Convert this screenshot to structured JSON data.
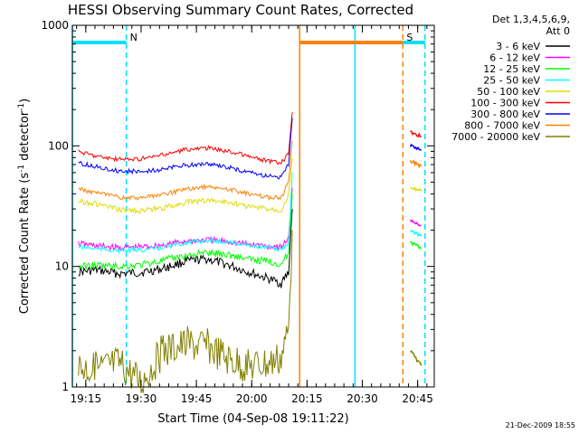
{
  "chart_data": {
    "type": "line",
    "title": "HESSI Observing Summary Count Rates, Corrected",
    "ylabel_main": "Corrected Count Rate (s",
    "ylabel_sup1": "-1",
    "ylabel_mid": " detector",
    "ylabel_sup2": "-1",
    "ylabel_end": ")",
    "xlabel": "Start Time (04-Sep-08 19:11:22)",
    "yscale": "log",
    "ylim": [
      1,
      1000
    ],
    "y_ticks": [
      1,
      10,
      100,
      1000
    ],
    "y_tick_labels": [
      "1",
      "10",
      "100",
      "1000"
    ],
    "x_range_minutes": [
      "19:11:22",
      "20:49:30"
    ],
    "x_ticks": [
      "19:15",
      "19:30",
      "19:45",
      "20:00",
      "20:15",
      "20:30",
      "20:45"
    ],
    "legend": {
      "header_line1": "Det 1,3,4,5,6,9,",
      "header_line2": "Att 0",
      "entries": [
        {
          "label": "3 - 6 keV",
          "color": "#000000"
        },
        {
          "label": "6 - 12 keV",
          "color": "#ff00ff"
        },
        {
          "label": "12 - 25 keV",
          "color": "#00ff00"
        },
        {
          "label": "25 - 50 keV",
          "color": "#00ffff"
        },
        {
          "label": "50 - 100 keV",
          "color": "#dddd00"
        },
        {
          "label": "100 - 300 keV",
          "color": "#ff0000"
        },
        {
          "label": "300 - 800 keV",
          "color": "#0000ff"
        },
        {
          "label": "800 - 7000 keV",
          "color": "#ff8000"
        },
        {
          "label": "7000 - 20000 keV",
          "color": "#808000"
        }
      ]
    },
    "series": [
      {
        "name": "3 - 6 keV",
        "color": "#000000",
        "points": [
          [
            "19:13",
            9.0
          ],
          [
            "19:18",
            9.3
          ],
          [
            "19:24",
            8.7
          ],
          [
            "19:30",
            8.9
          ],
          [
            "19:36",
            9.6
          ],
          [
            "19:42",
            11.0
          ],
          [
            "19:48",
            11.5
          ],
          [
            "19:54",
            10.2
          ],
          [
            "19:59",
            9.0
          ],
          [
            "20:05",
            7.8
          ],
          [
            "20:08",
            7.2
          ],
          [
            "20:10",
            9
          ],
          [
            "20:11",
            30
          ]
        ]
      },
      {
        "name": "6 - 12 keV",
        "color": "#ff00ff",
        "points": [
          [
            "19:13",
            15.5
          ],
          [
            "19:18",
            14.8
          ],
          [
            "19:24",
            14.3
          ],
          [
            "19:30",
            14.5
          ],
          [
            "19:36",
            15.0
          ],
          [
            "19:42",
            16.2
          ],
          [
            "19:48",
            16.6
          ],
          [
            "19:54",
            16.0
          ],
          [
            "19:59",
            15.2
          ],
          [
            "20:05",
            14.7
          ],
          [
            "20:08",
            14.5
          ],
          [
            "20:10",
            17
          ],
          [
            "20:11",
            45
          ]
        ]
      },
      {
        "name": "12 - 25 keV",
        "color": "#00ff00",
        "points": [
          [
            "19:13",
            10.0
          ],
          [
            "19:18",
            10.2
          ],
          [
            "19:24",
            10.0
          ],
          [
            "19:30",
            10.3
          ],
          [
            "19:36",
            11.2
          ],
          [
            "19:42",
            12.3
          ],
          [
            "19:48",
            13.0
          ],
          [
            "19:54",
            12.5
          ],
          [
            "19:59",
            11.5
          ],
          [
            "20:05",
            11.0
          ],
          [
            "20:08",
            10.5
          ],
          [
            "20:10",
            13
          ],
          [
            "20:11",
            40
          ]
        ]
      },
      {
        "name": "25 - 50 keV",
        "color": "#00ffff",
        "points": [
          [
            "19:13",
            14.5
          ],
          [
            "19:18",
            14.0
          ],
          [
            "19:24",
            13.5
          ],
          [
            "19:30",
            13.7
          ],
          [
            "19:36",
            14.3
          ],
          [
            "19:42",
            15.7
          ],
          [
            "19:48",
            16.4
          ],
          [
            "19:54",
            16.0
          ],
          [
            "19:59",
            15.0
          ],
          [
            "20:05",
            14.2
          ],
          [
            "20:08",
            13.8
          ],
          [
            "20:10",
            16
          ],
          [
            "20:11",
            60
          ]
        ]
      },
      {
        "name": "50 - 100 keV",
        "color": "#dddd00",
        "points": [
          [
            "19:13",
            35.0
          ],
          [
            "19:18",
            33.0
          ],
          [
            "19:24",
            29.5
          ],
          [
            "19:30",
            29.0
          ],
          [
            "19:36",
            30.5
          ],
          [
            "19:42",
            34.0
          ],
          [
            "19:48",
            35.5
          ],
          [
            "19:54",
            34.0
          ],
          [
            "19:59",
            31.5
          ],
          [
            "20:05",
            30.0
          ],
          [
            "20:08",
            29.5
          ],
          [
            "20:10",
            40
          ],
          [
            "20:11",
            80
          ]
        ]
      },
      {
        "name": "100 - 300 keV",
        "color": "#ff0000",
        "points": [
          [
            "19:13",
            90.0
          ],
          [
            "19:18",
            82.0
          ],
          [
            "19:24",
            77.0
          ],
          [
            "19:30",
            78.0
          ],
          [
            "19:36",
            84.0
          ],
          [
            "19:42",
            93.0
          ],
          [
            "19:48",
            96.0
          ],
          [
            "19:54",
            90.0
          ],
          [
            "19:59",
            82.0
          ],
          [
            "20:05",
            74.0
          ],
          [
            "20:08",
            72.0
          ],
          [
            "20:10",
            85
          ],
          [
            "20:11",
            190
          ]
        ]
      },
      {
        "name": "300 - 800 keV",
        "color": "#0000ff",
        "points": [
          [
            "19:13",
            72.0
          ],
          [
            "19:18",
            67.0
          ],
          [
            "19:24",
            62.0
          ],
          [
            "19:30",
            61.0
          ],
          [
            "19:36",
            64.0
          ],
          [
            "19:42",
            69.0
          ],
          [
            "19:48",
            71.0
          ],
          [
            "19:54",
            66.0
          ],
          [
            "19:59",
            60.0
          ],
          [
            "20:05",
            56.0
          ],
          [
            "20:08",
            55.0
          ],
          [
            "20:10",
            70
          ],
          [
            "20:11",
            170
          ]
        ]
      },
      {
        "name": "800 - 7000 keV",
        "color": "#ff8000",
        "points": [
          [
            "19:13",
            44.0
          ],
          [
            "19:18",
            40.5
          ],
          [
            "19:24",
            37.5
          ],
          [
            "19:30",
            37.0
          ],
          [
            "19:36",
            39.5
          ],
          [
            "19:42",
            43.5
          ],
          [
            "19:48",
            46.0
          ],
          [
            "19:54",
            43.5
          ],
          [
            "19:59",
            40.0
          ],
          [
            "20:05",
            37.5
          ],
          [
            "20:08",
            37.0
          ],
          [
            "20:10",
            50
          ],
          [
            "20:11",
            110
          ]
        ]
      },
      {
        "name": "7000 - 20000 keV",
        "color": "#808000",
        "points": [
          [
            "19:13",
            1.5
          ],
          [
            "19:18",
            1.4
          ],
          [
            "19:24",
            1.6
          ],
          [
            "19:30",
            1.1
          ],
          [
            "19:36",
            2.0
          ],
          [
            "19:42",
            2.3
          ],
          [
            "19:48",
            2.2
          ],
          [
            "19:54",
            1.7
          ],
          [
            "19:59",
            1.5
          ],
          [
            "20:05",
            1.6
          ],
          [
            "20:08",
            1.8
          ],
          [
            "20:10",
            3
          ],
          [
            "20:11",
            20
          ]
        ]
      }
    ],
    "late_segment_series": [
      {
        "name": "100 - 300 keV",
        "color": "#ff0000",
        "points": [
          [
            "20:43",
            130
          ],
          [
            "20:46",
            120
          ]
        ]
      },
      {
        "name": "300 - 800 keV",
        "color": "#0000ff",
        "points": [
          [
            "20:43",
            100
          ],
          [
            "20:46",
            92
          ]
        ]
      },
      {
        "name": "800 - 7000 keV",
        "color": "#ff8000",
        "points": [
          [
            "20:43",
            75
          ],
          [
            "20:46",
            68
          ]
        ]
      },
      {
        "name": "50 - 100 keV",
        "color": "#dddd00",
        "points": [
          [
            "20:43",
            46
          ],
          [
            "20:46",
            42
          ]
        ]
      },
      {
        "name": "6 - 12 keV",
        "color": "#ff00ff",
        "points": [
          [
            "20:43",
            24
          ],
          [
            "20:46",
            22
          ]
        ]
      },
      {
        "name": "25 - 50 keV",
        "color": "#00ffff",
        "points": [
          [
            "20:43",
            20
          ],
          [
            "20:46",
            18
          ]
        ]
      },
      {
        "name": "12 - 25 keV",
        "color": "#00ff00",
        "points": [
          [
            "20:43",
            16
          ],
          [
            "20:46",
            14
          ]
        ]
      },
      {
        "name": "7000 - 20000 keV",
        "color": "#808000",
        "points": [
          [
            "20:43",
            2
          ],
          [
            "20:46",
            1.5
          ]
        ]
      }
    ],
    "annotations": [
      {
        "label": "N",
        "color": "#00e0ff",
        "bar_start": "19:11:22",
        "bar_end": "19:26",
        "boundary_time": "19:26"
      },
      {
        "label": "S",
        "color": "#ff8000",
        "bar_start": "20:13",
        "bar_end": "20:41",
        "boundary_time": "20:41"
      }
    ],
    "night_intervals": [
      [
        "19:11:22",
        "19:26"
      ],
      [
        "20:28",
        "20:47"
      ]
    ],
    "saa_interval": [
      "20:13",
      "20:41"
    ],
    "data_gaps": [
      [
        "20:13",
        "20:42"
      ]
    ]
  },
  "footer_timestamp": "21-Dec-2009 18:55"
}
